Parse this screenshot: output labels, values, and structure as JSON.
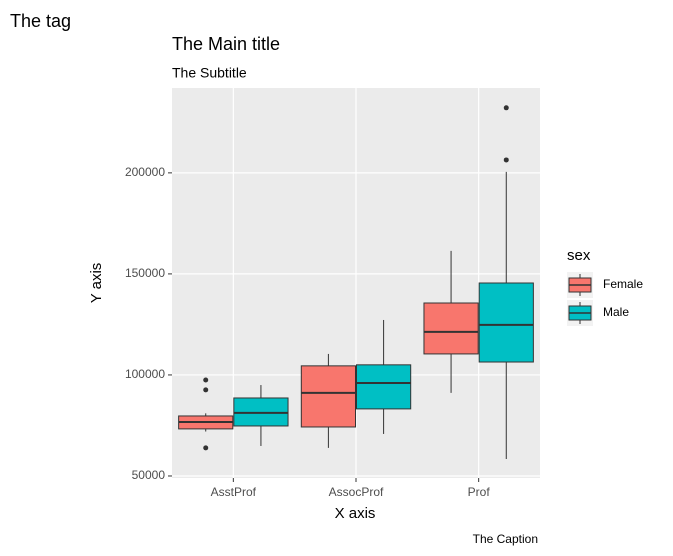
{
  "chart_data": {
    "type": "boxplot",
    "tag": "The tag",
    "title": "The Main title",
    "subtitle": "The Subtitle",
    "caption": "The Caption",
    "x_label": "X axis",
    "y_label": "Y axis",
    "legend_title": "sex",
    "categories": [
      "AsstProf",
      "AssocProf",
      "Prof"
    ],
    "ylim": [
      49000,
      242000
    ],
    "yticks": [
      50000,
      100000,
      150000,
      200000
    ],
    "grid": true,
    "series": [
      {
        "name": "Female",
        "color": "#f8766d",
        "low": [
          72000,
          63900,
          91100
        ],
        "q1": [
          73300,
          74250,
          110400
        ],
        "median": [
          76700,
          91100,
          121300
        ],
        "q3": [
          79700,
          104500,
          135600
        ],
        "high": [
          81000,
          110400,
          161400
        ],
        "outliers": [
          [
            97500,
            92600,
            63900
          ],
          [],
          []
        ]
      },
      {
        "name": "Male",
        "color": "#00bfc4",
        "low": [
          64850,
          70800,
          58400
        ],
        "q1": [
          74750,
          83200,
          106400
        ],
        "median": [
          81200,
          96000,
          124750
        ],
        "q3": [
          88600,
          105000,
          145500
        ],
        "high": [
          95000,
          127200,
          200500
        ],
        "outliers": [
          [],
          [],
          [
            206400,
            232200
          ]
        ]
      }
    ]
  }
}
